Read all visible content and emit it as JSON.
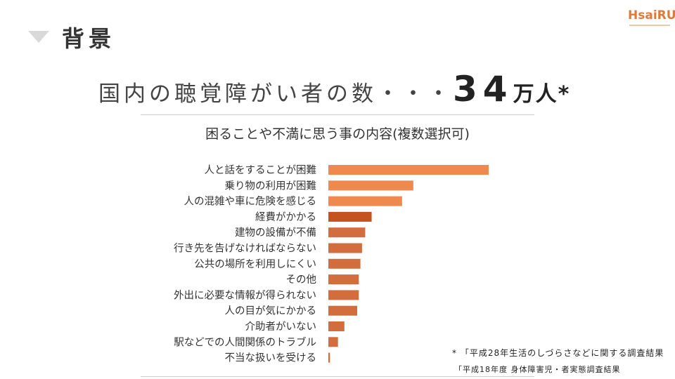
{
  "header": {
    "title": "背景"
  },
  "logo": {
    "text": "HsaiRU"
  },
  "headline": {
    "prefix": "国内の聴覚障がい者の数・・・",
    "number": "34",
    "unit": "万人*"
  },
  "chart_data": {
    "type": "bar",
    "orientation": "horizontal",
    "title": "困ることや不満に思う事の内容(複数選択可)",
    "categories": [
      "人と話をすることが困難",
      "乗り物の利用が困難",
      "人の混雑や車に危険を感じる",
      "経費がかかる",
      "建物の設備が不備",
      "行き先を告げなければならない",
      "公共の場所を利用しにくい",
      "その他",
      "外出に必要な情報が得られない",
      "人の目が気にかかる",
      "介助者がいない",
      "駅などでの人間関係のトラブル",
      "不当な扱いを受ける"
    ],
    "values": [
      100,
      53,
      46,
      27,
      23,
      21,
      20,
      19,
      19,
      18,
      10,
      6,
      1
    ],
    "bar_colors": [
      "#f0894e",
      "#f0894e",
      "#f0894e",
      "#c4531f",
      "#d26e3e",
      "#d26e3e",
      "#d26e3e",
      "#d26e3e",
      "#d26e3e",
      "#d26e3e",
      "#d26e3e",
      "#d26e3e",
      "#d26e3e"
    ],
    "grid": false,
    "legend": "none"
  },
  "notes": {
    "note1": "* 「平成28年生活のしづらさなどに関する調査結果",
    "note2": "「平成18年度 身体障害児・者実態調査結果"
  }
}
